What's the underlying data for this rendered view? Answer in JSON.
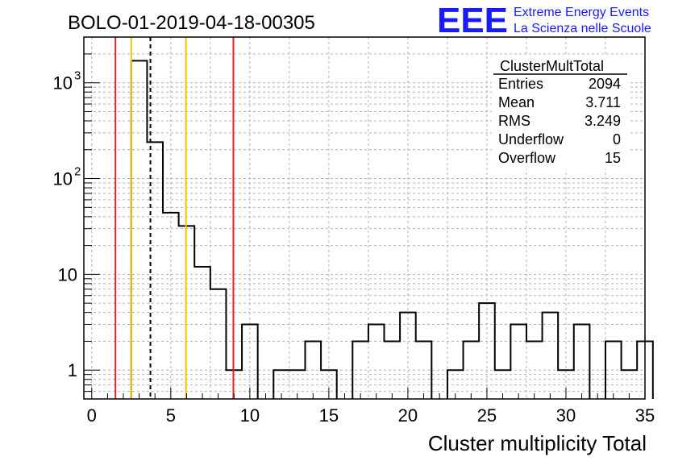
{
  "header": {
    "title": "BOLO-01-2019-04-18-00305"
  },
  "logo": {
    "mark": "EEE",
    "line1": "Extreme Energy Events",
    "line2": "La Scienza nelle Scuole",
    "color": "#1a1aff"
  },
  "stats": {
    "name": "ClusterMultTotal",
    "rows": [
      {
        "label": "Entries",
        "value": "2094"
      },
      {
        "label": "Mean",
        "value": "3.711"
      },
      {
        "label": "RMS",
        "value": "3.249"
      },
      {
        "label": "Underflow",
        "value": "0"
      },
      {
        "label": "Overflow",
        "value": "15"
      }
    ]
  },
  "chart_data": {
    "type": "histogram",
    "title": "BOLO-01-2019-04-18-00305",
    "xlabel": "Cluster multiplicity Total",
    "ylabel": "",
    "xlim": [
      -0.5,
      35
    ],
    "ylim": [
      0.5,
      3000
    ],
    "yscale": "log",
    "grid": true,
    "bin_width": 1,
    "bins": [
      {
        "x0": 2.5,
        "count": 1700
      },
      {
        "x0": 3.5,
        "count": 240
      },
      {
        "x0": 4.5,
        "count": 44
      },
      {
        "x0": 5.5,
        "count": 32
      },
      {
        "x0": 6.5,
        "count": 12
      },
      {
        "x0": 7.5,
        "count": 7
      },
      {
        "x0": 8.5,
        "count": 1
      },
      {
        "x0": 9.5,
        "count": 3
      },
      {
        "x0": 11.5,
        "count": 1
      },
      {
        "x0": 12.5,
        "count": 1
      },
      {
        "x0": 13.5,
        "count": 2
      },
      {
        "x0": 14.5,
        "count": 1
      },
      {
        "x0": 16.5,
        "count": 2
      },
      {
        "x0": 17.5,
        "count": 3
      },
      {
        "x0": 18.5,
        "count": 2
      },
      {
        "x0": 19.5,
        "count": 4
      },
      {
        "x0": 20.5,
        "count": 2
      },
      {
        "x0": 22.5,
        "count": 1
      },
      {
        "x0": 23.5,
        "count": 2
      },
      {
        "x0": 24.5,
        "count": 5
      },
      {
        "x0": 25.5,
        "count": 1
      },
      {
        "x0": 26.5,
        "count": 3
      },
      {
        "x0": 27.5,
        "count": 2
      },
      {
        "x0": 28.5,
        "count": 4
      },
      {
        "x0": 29.5,
        "count": 1
      },
      {
        "x0": 30.5,
        "count": 3
      },
      {
        "x0": 32.5,
        "count": 2
      },
      {
        "x0": 33.5,
        "count": 1
      },
      {
        "x0": 34.5,
        "count": 2
      }
    ],
    "x_ticks": [
      "0",
      "5",
      "10",
      "15",
      "20",
      "25",
      "30",
      "35"
    ],
    "x_tick_values": [
      0,
      5,
      10,
      15,
      20,
      25,
      30,
      35
    ],
    "y_ticks": [
      {
        "value": 1,
        "base": "1",
        "exp": ""
      },
      {
        "value": 10,
        "base": "10",
        "exp": ""
      },
      {
        "value": 100,
        "base": "10",
        "exp": "2"
      },
      {
        "value": 1000,
        "base": "10",
        "exp": "3"
      }
    ],
    "vlines": [
      {
        "x": 1.5,
        "color": "#e8211e",
        "style": "solid"
      },
      {
        "x": 2.5,
        "color": "#f5c400",
        "style": "solid"
      },
      {
        "x": 3.711,
        "color": "#000000",
        "style": "dashed"
      },
      {
        "x": 5.96,
        "color": "#f5c400",
        "style": "solid"
      },
      {
        "x": 8.96,
        "color": "#e8211e",
        "style": "solid"
      }
    ]
  }
}
